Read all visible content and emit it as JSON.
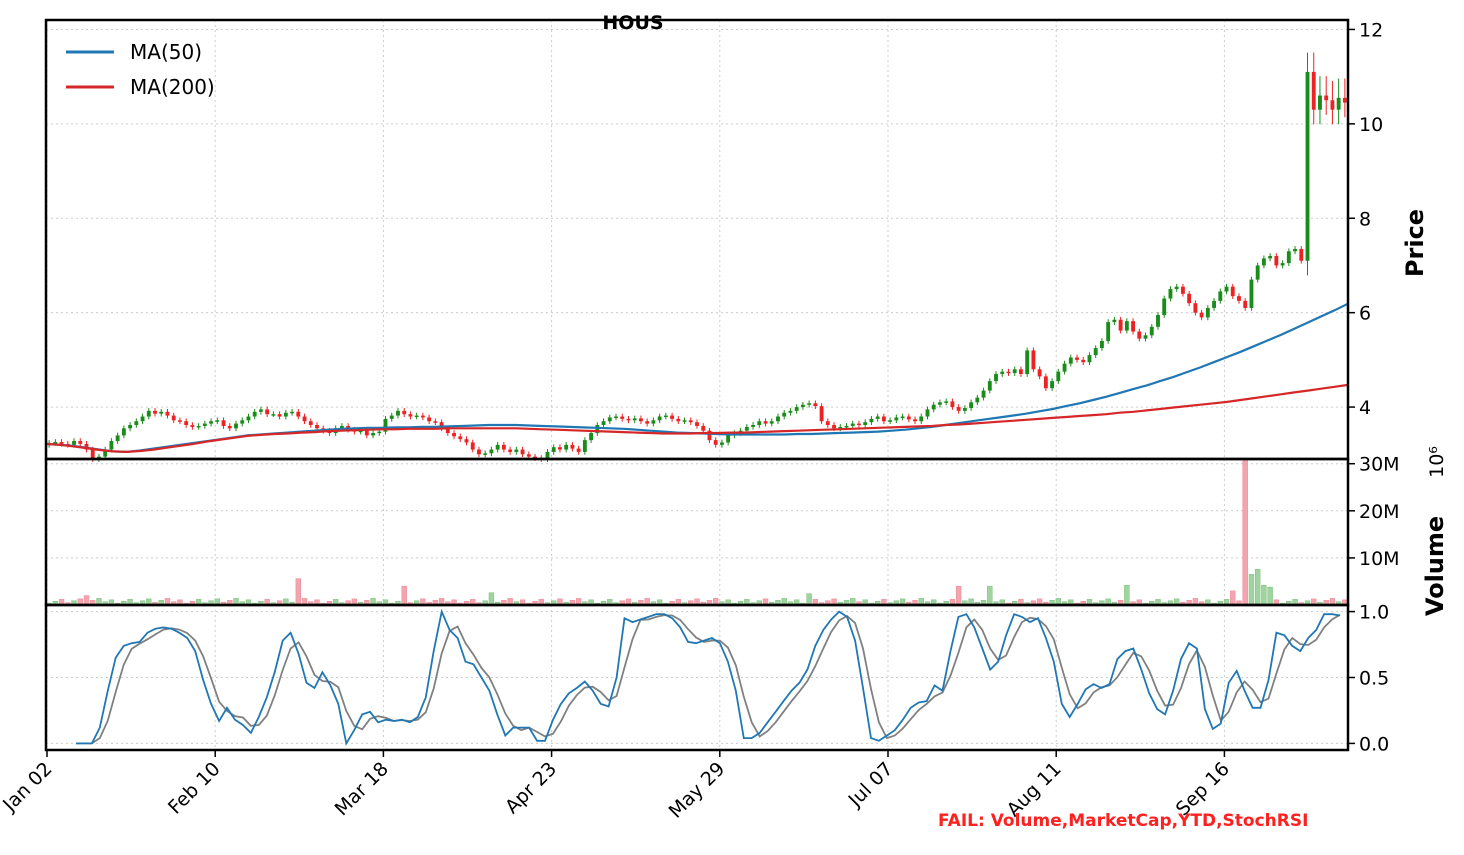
{
  "chart_data": {
    "type": "candlestick",
    "title": "HOUS",
    "footer_note": "FAIL: Volume,MarketCap,YTD,StochRSI",
    "x_tick_labels": [
      "Jan 02",
      "Feb 10",
      "Mar 18",
      "Apr 23",
      "May 29",
      "Jul 07",
      "Aug 11",
      "Sep 16"
    ],
    "x_tick_index": [
      0,
      27,
      54,
      81,
      108,
      135,
      162,
      189
    ],
    "price_panel": {
      "ylabel": "Price",
      "ylim": [
        2.9,
        12.2
      ],
      "yticks": [
        4,
        6,
        8,
        10,
        12
      ],
      "legend": [
        {
          "name": "MA(50)",
          "color": "#1f77b4"
        },
        {
          "name": "MA(200)",
          "color": "#d62728"
        }
      ],
      "up_color": "#1a8c1a",
      "down_color": "#ee2222",
      "close": [
        3.24,
        3.26,
        3.22,
        3.2,
        3.28,
        3.22,
        3.1,
        2.9,
        2.95,
        3.1,
        3.28,
        3.4,
        3.55,
        3.62,
        3.7,
        3.8,
        3.92,
        3.86,
        3.9,
        3.82,
        3.72,
        3.7,
        3.62,
        3.58,
        3.6,
        3.65,
        3.7,
        3.72,
        3.6,
        3.55,
        3.65,
        3.72,
        3.8,
        3.9,
        3.95,
        3.85,
        3.85,
        3.8,
        3.88,
        3.9,
        3.8,
        3.7,
        3.62,
        3.55,
        3.5,
        3.45,
        3.55,
        3.6,
        3.52,
        3.48,
        3.5,
        3.4,
        3.45,
        3.48,
        3.75,
        3.82,
        3.92,
        3.85,
        3.8,
        3.82,
        3.78,
        3.7,
        3.68,
        3.55,
        3.45,
        3.38,
        3.32,
        3.25,
        3.1,
        3.0,
        3.02,
        3.1,
        3.2,
        3.1,
        3.05,
        3.1,
        3.0,
        2.95,
        2.92,
        2.9,
        3.05,
        3.15,
        3.1,
        3.2,
        3.12,
        3.05,
        3.3,
        3.45,
        3.62,
        3.7,
        3.78,
        3.8,
        3.75,
        3.72,
        3.76,
        3.7,
        3.65,
        3.72,
        3.8,
        3.82,
        3.75,
        3.7,
        3.72,
        3.68,
        3.6,
        3.5,
        3.3,
        3.2,
        3.25,
        3.4,
        3.45,
        3.5,
        3.58,
        3.62,
        3.7,
        3.65,
        3.7,
        3.8,
        3.88,
        3.92,
        4.0,
        4.05,
        4.08,
        4.02,
        3.7,
        3.62,
        3.55,
        3.58,
        3.6,
        3.65,
        3.62,
        3.68,
        3.75,
        3.8,
        3.7,
        3.72,
        3.78,
        3.8,
        3.74,
        3.7,
        3.8,
        3.95,
        4.05,
        4.1,
        4.12,
        4.0,
        3.92,
        3.98,
        4.1,
        4.2,
        4.35,
        4.55,
        4.7,
        4.75,
        4.72,
        4.8,
        4.7,
        5.2,
        4.8,
        4.65,
        4.4,
        4.55,
        4.75,
        4.92,
        5.05,
        5.0,
        4.95,
        5.1,
        5.25,
        5.4,
        5.8,
        5.85,
        5.62,
        5.82,
        5.6,
        5.45,
        5.52,
        5.7,
        5.95,
        6.3,
        6.5,
        6.55,
        6.4,
        6.2,
        6.0,
        5.9,
        6.1,
        6.25,
        6.45,
        6.55,
        6.35,
        6.25,
        6.1,
        6.7,
        7.0,
        7.15,
        7.2,
        7.0,
        7.05,
        7.3,
        7.35,
        7.1,
        11.1,
        10.3,
        10.6,
        10.5,
        10.3,
        10.55,
        10.45
      ],
      "ma50": [
        3.22,
        3.2,
        3.18,
        3.14,
        3.1,
        3.06,
        3.05,
        3.08,
        3.12,
        3.16,
        3.2,
        3.24,
        3.28,
        3.32,
        3.36,
        3.4,
        3.42,
        3.44,
        3.46,
        3.48,
        3.5,
        3.52,
        3.54,
        3.55,
        3.56,
        3.56,
        3.57,
        3.57,
        3.58,
        3.58,
        3.59,
        3.6,
        3.61,
        3.62,
        3.62,
        3.62,
        3.61,
        3.6,
        3.59,
        3.58,
        3.57,
        3.56,
        3.55,
        3.54,
        3.52,
        3.5,
        3.48,
        3.46,
        3.45,
        3.44,
        3.43,
        3.42,
        3.42,
        3.42,
        3.42,
        3.42,
        3.43,
        3.43,
        3.44,
        3.45,
        3.46,
        3.47,
        3.48,
        3.5,
        3.52,
        3.55,
        3.58,
        3.62,
        3.66,
        3.7,
        3.74,
        3.78,
        3.82,
        3.86,
        3.91,
        3.96,
        4.02,
        4.08,
        4.15,
        4.22,
        4.3,
        4.38,
        4.46,
        4.55,
        4.64,
        4.74,
        4.84,
        4.95,
        5.06,
        5.17,
        5.29,
        5.41,
        5.53,
        5.66,
        5.79,
        5.92,
        6.05,
        6.19
      ],
      "ma50_start_index": 0,
      "ma200": [
        3.22,
        3.2,
        3.17,
        3.13,
        3.09,
        3.06,
        3.05,
        3.07,
        3.1,
        3.14,
        3.18,
        3.22,
        3.27,
        3.31,
        3.35,
        3.39,
        3.41,
        3.43,
        3.44,
        3.46,
        3.47,
        3.49,
        3.5,
        3.51,
        3.52,
        3.53,
        3.53,
        3.54,
        3.54,
        3.54,
        3.55,
        3.55,
        3.55,
        3.55,
        3.55,
        3.55,
        3.54,
        3.53,
        3.52,
        3.51,
        3.5,
        3.49,
        3.48,
        3.47,
        3.46,
        3.45,
        3.44,
        3.44,
        3.44,
        3.45,
        3.45,
        3.46,
        3.46,
        3.47,
        3.48,
        3.49,
        3.5,
        3.51,
        3.52,
        3.53,
        3.54,
        3.55,
        3.56,
        3.57,
        3.58,
        3.59,
        3.6,
        3.62,
        3.63,
        3.65,
        3.67,
        3.69,
        3.71,
        3.73,
        3.75,
        3.77,
        3.79,
        3.81,
        3.83,
        3.85,
        3.88,
        3.9,
        3.93,
        3.96,
        3.99,
        4.02,
        4.05,
        4.08,
        4.11,
        4.15,
        4.19,
        4.23,
        4.27,
        4.31,
        4.35,
        4.39,
        4.43,
        4.47
      ]
    },
    "volume_panel": {
      "ylabel": "Volume",
      "scale_label": "10⁶",
      "ylim": [
        0,
        31
      ],
      "yticks": [
        10,
        20,
        30
      ],
      "ytick_labels": [
        "10M",
        "20M",
        "30M"
      ],
      "spikes": [
        {
          "index": 6,
          "value": 2.0
        },
        {
          "index": 40,
          "value": 5.6
        },
        {
          "index": 57,
          "value": 4.0
        },
        {
          "index": 71,
          "value": 2.6
        },
        {
          "index": 122,
          "value": 2.4
        },
        {
          "index": 146,
          "value": 4.0
        },
        {
          "index": 151,
          "value": 4.0
        },
        {
          "index": 173,
          "value": 4.2
        },
        {
          "index": 190,
          "value": 3.0
        },
        {
          "index": 192,
          "value": 31.0
        },
        {
          "index": 193,
          "value": 6.5
        },
        {
          "index": 194,
          "value": 7.6
        },
        {
          "index": 195,
          "value": 4.2
        },
        {
          "index": 196,
          "value": 3.8
        }
      ]
    },
    "stoch_panel": {
      "ylim": [
        -0.05,
        1.05
      ],
      "yticks": [
        0.0,
        0.5,
        1.0
      ],
      "ytick_labels": [
        "0.0",
        "0.5",
        "1.0"
      ],
      "k_color": "#1f77b4",
      "d_color": "#808080",
      "k": [
        0,
        0,
        0,
        0.12,
        0.4,
        0.65,
        0.74,
        0.76,
        0.77,
        0.84,
        0.87,
        0.88,
        0.87,
        0.84,
        0.8,
        0.7,
        0.48,
        0.3,
        0.17,
        0.27,
        0.18,
        0.14,
        0.08,
        0.2,
        0.35,
        0.54,
        0.78,
        0.84,
        0.68,
        0.46,
        0.42,
        0.54,
        0.44,
        0.3,
        0.0,
        0.1,
        0.22,
        0.24,
        0.16,
        0.18,
        0.17,
        0.18,
        0.16,
        0.2,
        0.35,
        0.7,
        1.0,
        0.86,
        0.8,
        0.62,
        0.6,
        0.5,
        0.4,
        0.22,
        0.06,
        0.12,
        0.12,
        0.12,
        0.02,
        0.02,
        0.18,
        0.3,
        0.38,
        0.42,
        0.47,
        0.4,
        0.3,
        0.28,
        0.5,
        0.95,
        0.92,
        0.94,
        0.96,
        0.98,
        0.98,
        0.95,
        0.88,
        0.77,
        0.76,
        0.78,
        0.8,
        0.76,
        0.62,
        0.4,
        0.04,
        0.04,
        0.08,
        0.16,
        0.24,
        0.32,
        0.4,
        0.46,
        0.56,
        0.74,
        0.86,
        0.94,
        1.0,
        0.96,
        0.78,
        0.42,
        0.04,
        0.02,
        0.06,
        0.1,
        0.18,
        0.27,
        0.31,
        0.32,
        0.44,
        0.4,
        0.7,
        0.96,
        0.98,
        0.88,
        0.72,
        0.56,
        0.62,
        0.82,
        0.98,
        0.96,
        0.92,
        0.95,
        0.8,
        0.62,
        0.3,
        0.2,
        0.3,
        0.41,
        0.45,
        0.42,
        0.45,
        0.64,
        0.7,
        0.72,
        0.56,
        0.38,
        0.26,
        0.22,
        0.4,
        0.64,
        0.76,
        0.72,
        0.26,
        0.11,
        0.15,
        0.46,
        0.55,
        0.4,
        0.27,
        0.27,
        0.48,
        0.84,
        0.82,
        0.74,
        0.7,
        0.8,
        0.86,
        0.98,
        0.98,
        0.97
      ]
    }
  }
}
